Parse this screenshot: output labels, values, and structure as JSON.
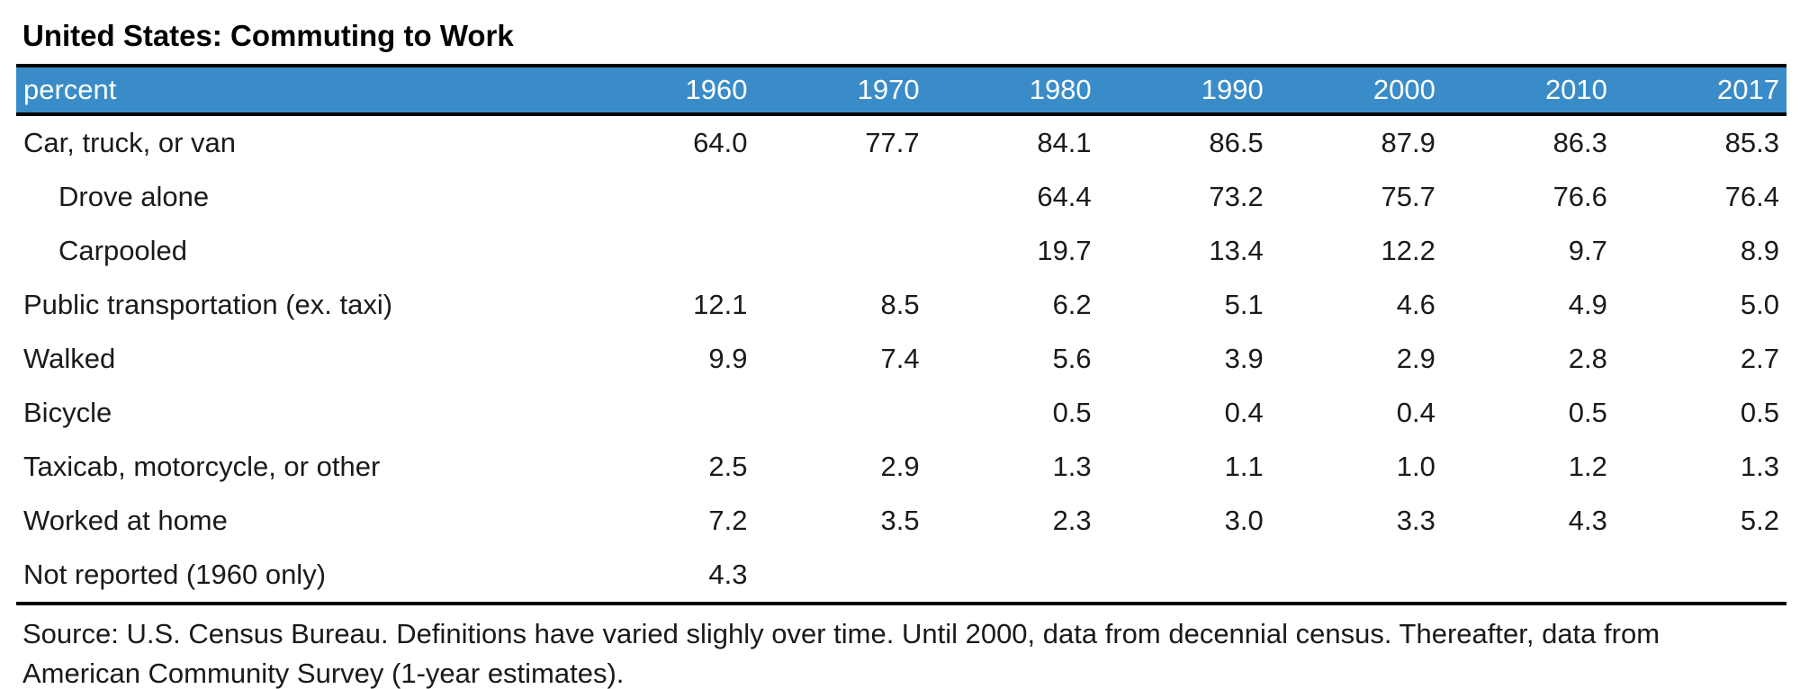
{
  "title": "United States: Commuting to Work",
  "table": {
    "unit_label": "percent",
    "years": [
      "1960",
      "1970",
      "1980",
      "1990",
      "2000",
      "2010",
      "2017"
    ],
    "rows": [
      {
        "label": "Car, truck, or van",
        "indent": false,
        "values": [
          "64.0",
          "77.7",
          "84.1",
          "86.5",
          "87.9",
          "86.3",
          "85.3"
        ]
      },
      {
        "label": "Drove alone",
        "indent": true,
        "values": [
          "",
          "",
          "64.4",
          "73.2",
          "75.7",
          "76.6",
          "76.4"
        ]
      },
      {
        "label": "Carpooled",
        "indent": true,
        "values": [
          "",
          "",
          "19.7",
          "13.4",
          "12.2",
          "9.7",
          "8.9"
        ]
      },
      {
        "label": "Public transportation (ex. taxi)",
        "indent": false,
        "values": [
          "12.1",
          "8.5",
          "6.2",
          "5.1",
          "4.6",
          "4.9",
          "5.0"
        ]
      },
      {
        "label": "Walked",
        "indent": false,
        "values": [
          "9.9",
          "7.4",
          "5.6",
          "3.9",
          "2.9",
          "2.8",
          "2.7"
        ]
      },
      {
        "label": "Bicycle",
        "indent": false,
        "values": [
          "",
          "",
          "0.5",
          "0.4",
          "0.4",
          "0.5",
          "0.5"
        ]
      },
      {
        "label": "Taxicab, motorcycle, or other",
        "indent": false,
        "values": [
          "2.5",
          "2.9",
          "1.3",
          "1.1",
          "1.0",
          "1.2",
          "1.3"
        ]
      },
      {
        "label": "Worked at home",
        "indent": false,
        "values": [
          "7.2",
          "3.5",
          "2.3",
          "3.0",
          "3.3",
          "4.3",
          "5.2"
        ]
      },
      {
        "label": "Not reported (1960 only)",
        "indent": false,
        "values": [
          "4.3",
          "",
          "",
          "",
          "",
          "",
          ""
        ]
      }
    ]
  },
  "source_lines": [
    "Source: U.S. Census Bureau. Definitions have varied slighly over time. Until 2000, data from decennial census. Thereafter, data from",
    "American Community Survey (1-year estimates)."
  ],
  "colors": {
    "header_bg": "#3A8CC8",
    "header_text": "#FFFFFF",
    "rule": "#000000",
    "body_text": "#1A1A1A"
  },
  "chart_data": {
    "type": "table",
    "title": "United States: Commuting to Work",
    "unit": "percent",
    "categories": [
      "1960",
      "1970",
      "1980",
      "1990",
      "2000",
      "2010",
      "2017"
    ],
    "series": [
      {
        "name": "Car, truck, or van",
        "values": [
          64.0,
          77.7,
          84.1,
          86.5,
          87.9,
          86.3,
          85.3
        ]
      },
      {
        "name": "Drove alone",
        "values": [
          null,
          null,
          64.4,
          73.2,
          75.7,
          76.6,
          76.4
        ]
      },
      {
        "name": "Carpooled",
        "values": [
          null,
          null,
          19.7,
          13.4,
          12.2,
          9.7,
          8.9
        ]
      },
      {
        "name": "Public transportation (ex. taxi)",
        "values": [
          12.1,
          8.5,
          6.2,
          5.1,
          4.6,
          4.9,
          5.0
        ]
      },
      {
        "name": "Walked",
        "values": [
          9.9,
          7.4,
          5.6,
          3.9,
          2.9,
          2.8,
          2.7
        ]
      },
      {
        "name": "Bicycle",
        "values": [
          null,
          null,
          0.5,
          0.4,
          0.4,
          0.5,
          0.5
        ]
      },
      {
        "name": "Taxicab, motorcycle, or other",
        "values": [
          2.5,
          2.9,
          1.3,
          1.1,
          1.0,
          1.2,
          1.3
        ]
      },
      {
        "name": "Worked at home",
        "values": [
          7.2,
          3.5,
          2.3,
          3.0,
          3.3,
          4.3,
          5.2
        ]
      },
      {
        "name": "Not reported (1960 only)",
        "values": [
          4.3,
          null,
          null,
          null,
          null,
          null,
          null
        ]
      }
    ],
    "source": "Source: U.S. Census Bureau. Definitions have varied slighly over time. Until 2000, data from decennial census. Thereafter, data from American Community Survey (1-year estimates)."
  }
}
